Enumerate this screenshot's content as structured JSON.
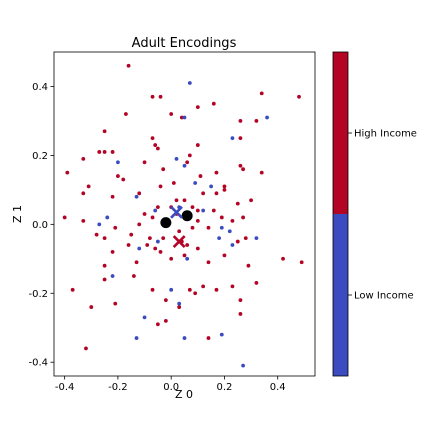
{
  "chart_data": {
    "type": "scatter",
    "title": "Adult Encodings",
    "xlabel": "Z 0",
    "ylabel": "Z 1",
    "xlim": [
      -0.44,
      0.54
    ],
    "ylim": [
      -0.44,
      0.5
    ],
    "xticks": [
      "-0.4",
      "-0.2",
      "0.0",
      "0.2",
      "0.4"
    ],
    "yticks": [
      "-0.4",
      "-0.2",
      "0.0",
      "0.2",
      "0.4"
    ],
    "xtick_values": [
      -0.4,
      -0.2,
      0.0,
      0.2,
      0.4
    ],
    "ytick_values": [
      -0.4,
      -0.2,
      0.0,
      0.2,
      0.4
    ],
    "grid": false,
    "colors": {
      "low": "#3b4cc0",
      "high": "#b40426"
    },
    "colorbar": {
      "labels": [
        "High Income",
        "Low Income"
      ],
      "colors": [
        "#b40426",
        "#3b4cc0"
      ]
    },
    "series": [
      {
        "name": "High Income",
        "color": "#b40426",
        "points": [
          [
            -0.16,
            0.46
          ],
          [
            -0.07,
            0.37
          ],
          [
            -0.04,
            0.37
          ],
          [
            0.16,
            0.35
          ],
          [
            0.1,
            0.34
          ],
          [
            0.34,
            0.38
          ],
          [
            0.48,
            0.37
          ],
          [
            -0.17,
            0.32
          ],
          [
            0.0,
            0.32
          ],
          [
            0.04,
            0.31
          ],
          [
            0.26,
            0.3
          ],
          [
            0.32,
            0.3
          ],
          [
            -0.25,
            0.27
          ],
          [
            -0.07,
            0.25
          ],
          [
            -0.06,
            0.23
          ],
          [
            0.1,
            0.23
          ],
          [
            0.26,
            0.25
          ],
          [
            -0.33,
            0.19
          ],
          [
            -0.27,
            0.21
          ],
          [
            -0.25,
            0.21
          ],
          [
            -0.22,
            0.21
          ],
          [
            -0.05,
            0.22
          ],
          [
            0.07,
            0.2
          ],
          [
            0.26,
            0.17
          ],
          [
            -0.39,
            0.15
          ],
          [
            -0.31,
            0.11
          ],
          [
            -0.2,
            0.14
          ],
          [
            -0.18,
            0.13
          ],
          [
            -0.1,
            0.18
          ],
          [
            -0.03,
            0.16
          ],
          [
            0.01,
            0.12
          ],
          [
            0.06,
            0.18
          ],
          [
            0.11,
            0.14
          ],
          [
            0.17,
            0.15
          ],
          [
            0.2,
            0.11
          ],
          [
            0.27,
            0.16
          ],
          [
            0.34,
            0.15
          ],
          [
            -0.33,
            0.09
          ],
          [
            -0.22,
            0.08
          ],
          [
            -0.12,
            0.09
          ],
          [
            -0.04,
            0.11
          ],
          [
            0.02,
            0.07
          ],
          [
            0.08,
            0.05
          ],
          [
            0.12,
            0.09
          ],
          [
            0.17,
            0.09
          ],
          [
            0.2,
            0.1
          ],
          [
            0.25,
            0.06
          ],
          [
            0.3,
            0.07
          ],
          [
            -0.4,
            0.02
          ],
          [
            -0.33,
            0.01
          ],
          [
            -0.28,
            -0.03
          ],
          [
            -0.25,
            -0.04
          ],
          [
            -0.21,
            -0.01
          ],
          [
            -0.15,
            -0.03
          ],
          [
            -0.12,
            0.0
          ],
          [
            -0.08,
            -0.04
          ],
          [
            -0.06,
            -0.07
          ],
          [
            -0.01,
            0.01
          ],
          [
            0.03,
            -0.02
          ],
          [
            0.06,
            -0.06
          ],
          [
            0.1,
            0.01
          ],
          [
            0.14,
            -0.01
          ],
          [
            0.16,
            0.04
          ],
          [
            0.19,
            0.02
          ],
          [
            0.23,
            0.01
          ],
          [
            0.27,
            0.02
          ],
          [
            0.28,
            -0.04
          ],
          [
            -0.25,
            -0.12
          ],
          [
            -0.22,
            -0.08
          ],
          [
            -0.16,
            -0.06
          ],
          [
            -0.13,
            -0.11
          ],
          [
            -0.09,
            -0.06
          ],
          [
            -0.04,
            -0.08
          ],
          [
            0.0,
            -0.1
          ],
          [
            0.05,
            -0.09
          ],
          [
            0.1,
            -0.07
          ],
          [
            0.14,
            -0.11
          ],
          [
            0.2,
            -0.09
          ],
          [
            0.25,
            -0.05
          ],
          [
            0.29,
            -0.12
          ],
          [
            -0.3,
            -0.24
          ],
          [
            -0.25,
            -0.16
          ],
          [
            -0.21,
            -0.23
          ],
          [
            -0.14,
            -0.15
          ],
          [
            -0.07,
            -0.19
          ],
          [
            -0.02,
            -0.22
          ],
          [
            0.07,
            -0.19
          ],
          [
            0.09,
            -0.2
          ],
          [
            0.12,
            -0.18
          ],
          [
            0.17,
            -0.19
          ],
          [
            0.23,
            -0.18
          ],
          [
            0.26,
            -0.22
          ],
          [
            0.32,
            -0.17
          ],
          [
            0.42,
            -0.1
          ],
          [
            0.49,
            -0.11
          ],
          [
            -0.37,
            -0.19
          ],
          [
            -0.32,
            -0.36
          ],
          [
            -0.05,
            -0.29
          ],
          [
            -0.02,
            -0.28
          ],
          [
            0.03,
            -0.24
          ],
          [
            0.14,
            -0.33
          ],
          [
            0.26,
            -0.26
          ],
          [
            -0.1,
            0.03
          ],
          [
            -0.07,
            0.02
          ],
          [
            -0.05,
            0.05
          ],
          [
            0.0,
            0.05
          ],
          [
            0.02,
            0.03
          ],
          [
            0.05,
            0.07
          ],
          [
            0.08,
            -0.01
          ],
          [
            0.1,
            0.04
          ],
          [
            -0.03,
            -0.04
          ],
          [
            0.04,
            -0.05
          ]
        ]
      },
      {
        "name": "Low Income",
        "color": "#3b4cc0",
        "points": [
          [
            0.07,
            0.41
          ],
          [
            0.36,
            0.31
          ],
          [
            0.05,
            0.31
          ],
          [
            0.23,
            0.25
          ],
          [
            -0.2,
            0.18
          ],
          [
            0.05,
            0.17
          ],
          [
            0.02,
            0.19
          ],
          [
            0.09,
            0.12
          ],
          [
            0.15,
            0.11
          ],
          [
            -0.13,
            0.08
          ],
          [
            -0.06,
            0.04
          ],
          [
            0.03,
            0.05
          ],
          [
            0.07,
            0.02
          ],
          [
            0.12,
            0.04
          ],
          [
            0.19,
            -0.01
          ],
          [
            0.22,
            -0.02
          ],
          [
            -0.27,
            0.0
          ],
          [
            -0.24,
            0.02
          ],
          [
            -0.12,
            -0.07
          ],
          [
            -0.05,
            -0.05
          ],
          [
            0.06,
            -0.1
          ],
          [
            0.18,
            -0.04
          ],
          [
            0.23,
            -0.06
          ],
          [
            0.32,
            -0.04
          ],
          [
            -0.22,
            -0.15
          ],
          [
            -0.1,
            -0.27
          ],
          [
            0.0,
            -0.19
          ],
          [
            0.03,
            -0.23
          ],
          [
            0.05,
            -0.33
          ],
          [
            0.19,
            -0.32
          ],
          [
            0.27,
            -0.41
          ],
          [
            -0.13,
            -0.33
          ]
        ]
      }
    ],
    "markers": [
      {
        "label": "",
        "shape": "circle",
        "color": "#000000",
        "x": -0.02,
        "y": 0.005
      },
      {
        "label": "",
        "shape": "circle",
        "color": "#000000",
        "x": 0.06,
        "y": 0.025
      },
      {
        "label": "",
        "shape": "x",
        "color": "#3b4cc0",
        "x": 0.02,
        "y": 0.035
      },
      {
        "label": "",
        "shape": "x",
        "color": "#b40426",
        "x": 0.03,
        "y": -0.05
      }
    ]
  }
}
